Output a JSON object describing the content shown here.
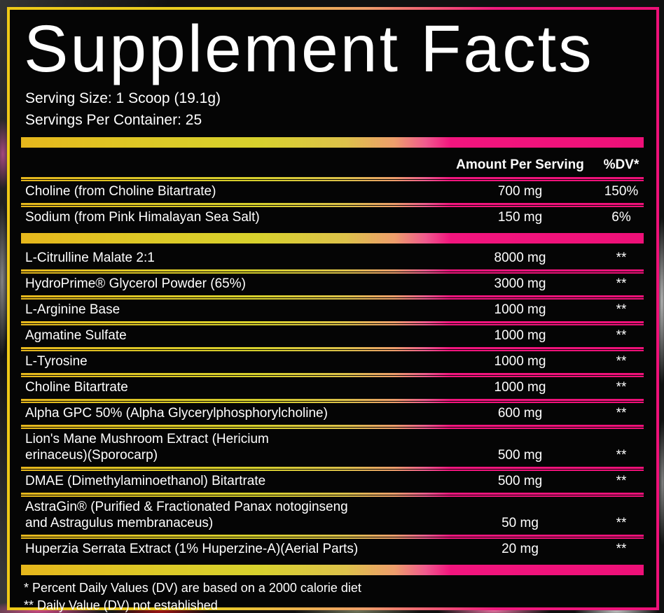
{
  "label": {
    "title": "Supplement Facts",
    "serving_size": "Serving Size: 1 Scoop (19.1g)",
    "servings_per_container": "Servings Per Container: 25",
    "columns": {
      "amount": "Amount Per Serving",
      "dv": "%DV*"
    },
    "daily_value_rows": [
      {
        "name": "Choline (from Choline Bitartrate)",
        "amount": "700 mg",
        "dv": "150%"
      },
      {
        "name": "Sodium (from Pink Himalayan Sea Salt)",
        "amount": "150 mg",
        "dv": "6%"
      }
    ],
    "ingredient_rows": [
      {
        "name": "L-Citrulline Malate 2:1",
        "amount": "8000 mg",
        "dv": "**"
      },
      {
        "name": "HydroPrime® Glycerol Powder (65%)",
        "amount": "3000 mg",
        "dv": "**"
      },
      {
        "name": "L-Arginine Base",
        "amount": "1000 mg",
        "dv": "**"
      },
      {
        "name": "Agmatine Sulfate",
        "amount": "1000 mg",
        "dv": "**"
      },
      {
        "name": "L-Tyrosine",
        "amount": "1000 mg",
        "dv": "**"
      },
      {
        "name": "Choline Bitartrate",
        "amount": "1000 mg",
        "dv": "**"
      },
      {
        "name": "Alpha GPC 50% (Alpha Glycerylphosphorylcholine)",
        "amount": "600 mg",
        "dv": "**"
      },
      {
        "name": "Lion's Mane Mushroom Extract (Hericium\nerinaceus)(Sporocarp)",
        "amount": "500 mg",
        "dv": "**"
      },
      {
        "name": "DMAE (Dimethylaminoethanol) Bitartrate",
        "amount": "500 mg",
        "dv": "**"
      },
      {
        "name": "AstraGin® (Purified & Fractionated Panax notoginseng\nand Astragulus membranaceus)",
        "amount": "50 mg",
        "dv": "**"
      },
      {
        "name": "Huperzia Serrata Extract (1% Huperzine-A)(Aerial Parts)",
        "amount": "20 mg",
        "dv": "**"
      }
    ],
    "footnotes": {
      "dv_note": "* Percent Daily Values (DV) are based on a 2000 calorie diet",
      "not_established_note": "** Daily Value (DV) not established"
    },
    "colors": {
      "gradient_yellow": "#e6b71c",
      "gradient_lime": "#d7d12d",
      "gradient_salmon": "#ee9e6c",
      "gradient_pink": "#ee1078",
      "panel_background": "#050505",
      "text": "#ffffff"
    }
  }
}
